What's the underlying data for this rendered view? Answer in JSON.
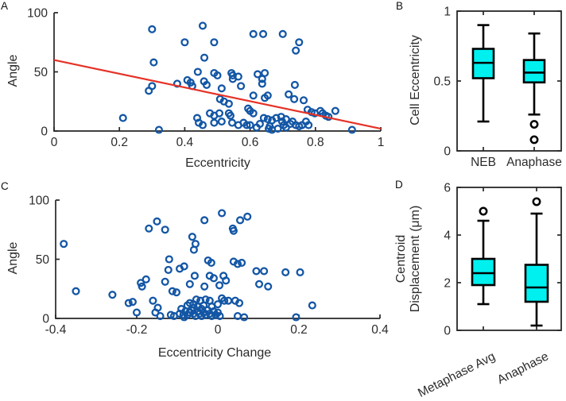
{
  "colors": {
    "scatter": "#1356a5",
    "fit_line": "#e63226",
    "box_fill": "#00f0f0",
    "box_edge": "#000000",
    "outlier": "#000000",
    "axis": "#262626",
    "text": "#2b2b2b",
    "background": "#ffffff"
  },
  "chart_data": [
    {
      "id": "A",
      "label": "A",
      "type": "scatter",
      "xlabel": "Eccentricity",
      "ylabel": "Angle",
      "xlim": [
        0,
        1
      ],
      "ylim": [
        0,
        100
      ],
      "xticks": [
        0,
        0.2,
        0.4,
        0.6,
        0.8,
        1
      ],
      "yticks": [
        0,
        50,
        100
      ],
      "grid": false,
      "fit_line": {
        "x": [
          0,
          1
        ],
        "y": [
          60,
          2
        ]
      },
      "points": [
        [
          0.3,
          86
        ],
        [
          0.455,
          89
        ],
        [
          0.4,
          75
        ],
        [
          0.49,
          75
        ],
        [
          0.305,
          58
        ],
        [
          0.46,
          62
        ],
        [
          0.61,
          82
        ],
        [
          0.64,
          82
        ],
        [
          0.7,
          82
        ],
        [
          0.75,
          75
        ],
        [
          0.74,
          68
        ],
        [
          0.29,
          34
        ],
        [
          0.3,
          38
        ],
        [
          0.377,
          40
        ],
        [
          0.408,
          43
        ],
        [
          0.418,
          41
        ],
        [
          0.423,
          38
        ],
        [
          0.44,
          50
        ],
        [
          0.459,
          42
        ],
        [
          0.467,
          39
        ],
        [
          0.49,
          49
        ],
        [
          0.5,
          47
        ],
        [
          0.513,
          36
        ],
        [
          0.543,
          49
        ],
        [
          0.547,
          47
        ],
        [
          0.547,
          44
        ],
        [
          0.564,
          46
        ],
        [
          0.572,
          38
        ],
        [
          0.623,
          48
        ],
        [
          0.645,
          49
        ],
        [
          0.637,
          44
        ],
        [
          0.637,
          40
        ],
        [
          0.645,
          28
        ],
        [
          0.61,
          30
        ],
        [
          0.654,
          30
        ],
        [
          0.737,
          39
        ],
        [
          0.718,
          31
        ],
        [
          0.735,
          27
        ],
        [
          0.764,
          26
        ],
        [
          0.211,
          11
        ],
        [
          0.321,
          1
        ],
        [
          0.438,
          11
        ],
        [
          0.443,
          7
        ],
        [
          0.455,
          5
        ],
        [
          0.477,
          15
        ],
        [
          0.49,
          13
        ],
        [
          0.49,
          7
        ],
        [
          0.506,
          15
        ],
        [
          0.508,
          27
        ],
        [
          0.513,
          8
        ],
        [
          0.52,
          25
        ],
        [
          0.535,
          23
        ],
        [
          0.535,
          15
        ],
        [
          0.54,
          13
        ],
        [
          0.545,
          7
        ],
        [
          0.564,
          5
        ],
        [
          0.58,
          7
        ],
        [
          0.59,
          5
        ],
        [
          0.6,
          5
        ],
        [
          0.594,
          19
        ],
        [
          0.6,
          17
        ],
        [
          0.61,
          15
        ],
        [
          0.62,
          3
        ],
        [
          0.63,
          6
        ],
        [
          0.642,
          11
        ],
        [
          0.654,
          10
        ],
        [
          0.667,
          9
        ],
        [
          0.68,
          11
        ],
        [
          0.657,
          2
        ],
        [
          0.667,
          1
        ],
        [
          0.66,
          4
        ],
        [
          0.685,
          2
        ],
        [
          0.695,
          12
        ],
        [
          0.698,
          8
        ],
        [
          0.703,
          5
        ],
        [
          0.71,
          3
        ],
        [
          0.71,
          10
        ],
        [
          0.723,
          6
        ],
        [
          0.73,
          8
        ],
        [
          0.74,
          5
        ],
        [
          0.75,
          4
        ],
        [
          0.759,
          5
        ],
        [
          0.771,
          8
        ],
        [
          0.779,
          5
        ],
        [
          0.776,
          18
        ],
        [
          0.788,
          16
        ],
        [
          0.798,
          15
        ],
        [
          0.815,
          17
        ],
        [
          0.822,
          15
        ],
        [
          0.832,
          13
        ],
        [
          0.84,
          12
        ],
        [
          0.861,
          17
        ],
        [
          0.912,
          1
        ]
      ]
    },
    {
      "id": "B",
      "label": "B",
      "type": "box",
      "ylabel": "Cell Eccentricity",
      "ylim": [
        0,
        1
      ],
      "yticks": [
        0,
        0.5,
        1
      ],
      "categories": [
        "NEB",
        "Anaphase"
      ],
      "boxes": [
        {
          "label": "NEB",
          "whisker_low": 0.21,
          "q1": 0.52,
          "median": 0.63,
          "q3": 0.73,
          "whisker_high": 0.9,
          "outliers": []
        },
        {
          "label": "Anaphase",
          "whisker_low": 0.26,
          "q1": 0.49,
          "median": 0.56,
          "q3": 0.65,
          "whisker_high": 0.84,
          "outliers": [
            0.19,
            0.08
          ]
        }
      ]
    },
    {
      "id": "C",
      "label": "C",
      "type": "scatter",
      "xlabel": "Eccentricity Change",
      "ylabel": "Angle",
      "xlim": [
        -0.4,
        0.4
      ],
      "ylim": [
        0,
        100
      ],
      "xticks": [
        -0.4,
        -0.2,
        0,
        0.2,
        0.4
      ],
      "yticks": [
        0,
        50,
        100
      ],
      "grid": false,
      "points": [
        [
          -0.38,
          63
        ],
        [
          -0.35,
          23
        ],
        [
          -0.26,
          20
        ],
        [
          -0.17,
          76
        ],
        [
          -0.15,
          82
        ],
        [
          -0.13,
          75
        ],
        [
          -0.12,
          50
        ],
        [
          -0.22,
          13
        ],
        [
          -0.21,
          14
        ],
        [
          -0.2,
          5
        ],
        [
          -0.19,
          30
        ],
        [
          -0.187,
          27
        ],
        [
          -0.177,
          33
        ],
        [
          -0.16,
          15
        ],
        [
          -0.148,
          9
        ],
        [
          -0.154,
          5
        ],
        [
          -0.142,
          2
        ],
        [
          -0.13,
          31
        ],
        [
          -0.122,
          41
        ],
        [
          -0.112,
          23
        ],
        [
          -0.102,
          22
        ],
        [
          -0.094,
          42
        ],
        [
          -0.083,
          44
        ],
        [
          -0.075,
          11
        ],
        [
          -0.069,
          13
        ],
        [
          -0.059,
          9
        ],
        [
          -0.116,
          3
        ],
        [
          -0.108,
          2
        ],
        [
          -0.094,
          4
        ],
        [
          -0.085,
          3
        ],
        [
          -0.083,
          1
        ],
        [
          -0.069,
          29
        ],
        [
          -0.057,
          36
        ],
        [
          -0.033,
          83
        ],
        [
          0.01,
          89
        ],
        [
          0.037,
          76
        ],
        [
          0.055,
          83
        ],
        [
          0.073,
          86
        ],
        [
          0.039,
          74
        ],
        [
          -0.063,
          69
        ],
        [
          -0.055,
          63
        ],
        [
          -0.059,
          58
        ],
        [
          -0.024,
          49
        ],
        [
          -0.016,
          47
        ],
        [
          0.039,
          48
        ],
        [
          0.049,
          46
        ],
        [
          0.059,
          47
        ],
        [
          0.095,
          40
        ],
        [
          0.114,
          40
        ],
        [
          0.167,
          39
        ],
        [
          0.203,
          39
        ],
        [
          -0.02,
          36
        ],
        [
          -0.01,
          34
        ],
        [
          0.014,
          36
        ],
        [
          0.02,
          32
        ],
        [
          -0.033,
          27
        ],
        [
          0.004,
          28
        ],
        [
          0.102,
          29
        ],
        [
          0.124,
          27
        ],
        [
          -0.053,
          16
        ],
        [
          -0.043,
          15
        ],
        [
          -0.03,
          16
        ],
        [
          -0.02,
          15
        ],
        [
          0.01,
          17
        ],
        [
          0.016,
          15
        ],
        [
          0.026,
          15
        ],
        [
          0.043,
          15
        ],
        [
          0.053,
          13
        ],
        [
          0.049,
          2
        ],
        [
          0.065,
          1
        ],
        [
          0.193,
          1
        ],
        [
          0.233,
          11
        ],
        [
          -0.09,
          8
        ],
        [
          -0.08,
          6
        ],
        [
          -0.07,
          5
        ],
        [
          -0.065,
          7
        ],
        [
          -0.06,
          4
        ],
        [
          -0.055,
          2
        ],
        [
          -0.05,
          6
        ],
        [
          -0.045,
          4
        ],
        [
          -0.04,
          8
        ],
        [
          -0.04,
          2
        ],
        [
          -0.035,
          5
        ],
        [
          -0.03,
          3
        ],
        [
          -0.025,
          7
        ],
        [
          -0.02,
          4
        ],
        [
          -0.015,
          2
        ],
        [
          -0.01,
          6
        ],
        [
          -0.005,
          3
        ],
        [
          0.0,
          5
        ],
        [
          0.005,
          2
        ],
        [
          -0.05,
          10
        ],
        [
          -0.035,
          11
        ],
        [
          -0.015,
          10
        ],
        [
          0.0,
          12
        ],
        [
          -0.075,
          3
        ],
        [
          -0.06,
          12
        ]
      ]
    },
    {
      "id": "D",
      "label": "D",
      "type": "box",
      "ylabel": "Centroid Displacement (μm)",
      "ylabel_lines": [
        "Centroid",
        "Displacement (μm)"
      ],
      "ylim": [
        0,
        6
      ],
      "yticks": [
        0,
        2,
        4,
        6
      ],
      "categories": [
        "Metaphase Avg",
        "Anaphase"
      ],
      "boxes": [
        {
          "label": "Metaphase Avg",
          "whisker_low": 1.1,
          "q1": 1.9,
          "median": 2.4,
          "q3": 3.0,
          "whisker_high": 4.6,
          "outliers": [
            5.0
          ]
        },
        {
          "label": "Anaphase",
          "whisker_low": 0.2,
          "q1": 1.2,
          "median": 1.8,
          "q3": 2.75,
          "whisker_high": 4.9,
          "outliers": [
            5.4
          ]
        }
      ]
    }
  ]
}
